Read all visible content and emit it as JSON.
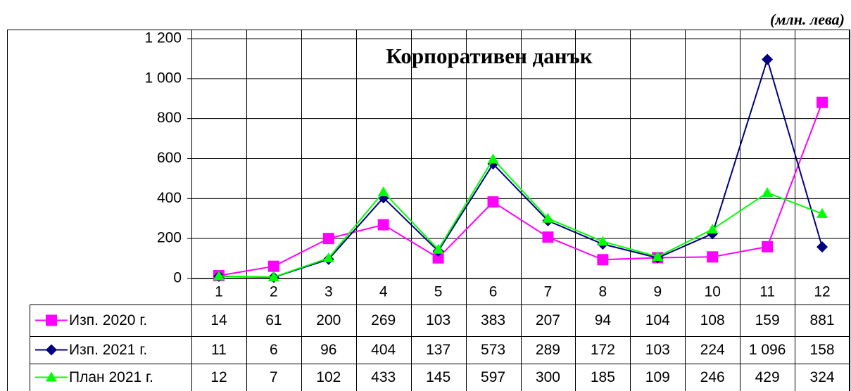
{
  "chart_data": {
    "type": "line",
    "title": "Корпоративен данък",
    "unit_label": "(млн. лева)",
    "categories": [
      "1",
      "2",
      "3",
      "4",
      "5",
      "6",
      "7",
      "8",
      "9",
      "10",
      "11",
      "12"
    ],
    "ylim": [
      0,
      1200
    ],
    "yticks": [
      0,
      200,
      400,
      600,
      800,
      {
        "value": 1000,
        "label": "1 000"
      },
      {
        "value": 1200,
        "label": "1 200"
      }
    ],
    "grid": true,
    "series": [
      {
        "name": "Изп. 2020 г.",
        "color": "#ff00ff",
        "marker": "square",
        "values": [
          14,
          61,
          200,
          269,
          103,
          383,
          207,
          94,
          104,
          108,
          159,
          881
        ]
      },
      {
        "name": "Изп. 2021 г.",
        "color": "#000080",
        "marker": "diamond",
        "values": [
          11,
          6,
          96,
          404,
          137,
          573,
          289,
          172,
          103,
          224,
          1096,
          158
        ],
        "value_labels": [
          "11",
          "6",
          "96",
          "404",
          "137",
          "573",
          "289",
          "172",
          "103",
          "224",
          "1 096",
          "158"
        ]
      },
      {
        "name": "План 2021 г.",
        "color": "#00ff00",
        "marker": "triangle",
        "values": [
          12,
          7,
          102,
          433,
          145,
          597,
          300,
          185,
          109,
          246,
          429,
          324
        ]
      }
    ]
  }
}
